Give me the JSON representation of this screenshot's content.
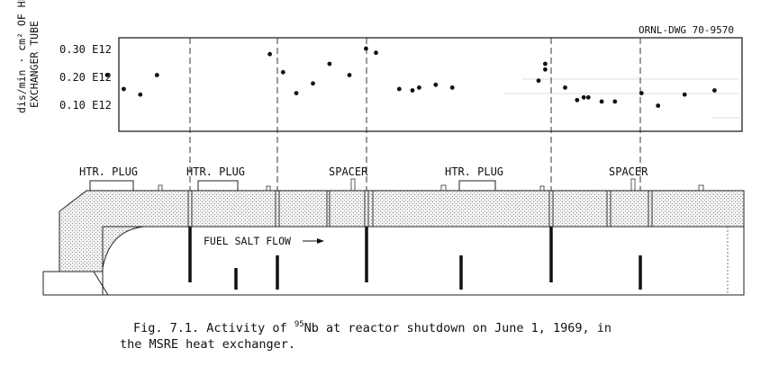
{
  "figure": {
    "drawing_number": "ORNL-DWG 70-9570",
    "y_axis_label_line1": "dis/min · cm² OF HEAT",
    "y_axis_label_line2": "EXCHANGER TUBE",
    "y_ticks": [
      "0.30 E12",
      "0.20 E12",
      "0.10 E12"
    ],
    "component_labels": [
      "HTR. PLUG",
      "HTR. PLUG",
      "SPACER",
      "HTR. PLUG",
      "SPACER"
    ],
    "flow_label": "FUEL SALT FLOW"
  },
  "chart_data": {
    "type": "scatter",
    "title": "",
    "xlabel": "",
    "ylabel": "dis/min · cm² OF HEAT EXCHANGER TUBE",
    "y_unit_multiplier": "E12",
    "ylim": [
      0.0,
      0.34
    ],
    "xlim": [
      0,
      100
    ],
    "points": [
      {
        "x": 13.5,
        "y": 0.205
      },
      {
        "x": 16.0,
        "y": 0.155
      },
      {
        "x": 18.5,
        "y": 0.135
      },
      {
        "x": 21.0,
        "y": 0.205
      },
      {
        "x": 38.0,
        "y": 0.28
      },
      {
        "x": 40.0,
        "y": 0.215
      },
      {
        "x": 42.0,
        "y": 0.14
      },
      {
        "x": 44.5,
        "y": 0.175
      },
      {
        "x": 47.0,
        "y": 0.245
      },
      {
        "x": 50.0,
        "y": 0.205
      },
      {
        "x": 52.5,
        "y": 0.3
      },
      {
        "x": 54.0,
        "y": 0.285
      },
      {
        "x": 57.5,
        "y": 0.155
      },
      {
        "x": 59.5,
        "y": 0.15
      },
      {
        "x": 60.5,
        "y": 0.16
      },
      {
        "x": 63.0,
        "y": 0.17
      },
      {
        "x": 65.5,
        "y": 0.16
      },
      {
        "x": 78.5,
        "y": 0.185
      },
      {
        "x": 79.5,
        "y": 0.245
      },
      {
        "x": 79.5,
        "y": 0.225
      },
      {
        "x": 82.5,
        "y": 0.16
      },
      {
        "x": 84.3,
        "y": 0.115
      },
      {
        "x": 85.3,
        "y": 0.125
      },
      {
        "x": 86.0,
        "y": 0.125
      },
      {
        "x": 88.0,
        "y": 0.11
      },
      {
        "x": 90.0,
        "y": 0.11
      },
      {
        "x": 94.0,
        "y": 0.14
      },
      {
        "x": 96.5,
        "y": 0.095
      },
      {
        "x": 100.5,
        "y": 0.135
      },
      {
        "x": 105.0,
        "y": 0.15
      }
    ]
  },
  "caption": {
    "fig_prefix": "Fig. 7.1.  Activity of ",
    "isotope_mass": "95",
    "isotope_symbol": "Nb",
    "line1_rest": " at reactor shutdown on June 1, 1969, in",
    "line2": "the MSRE heat exchanger."
  }
}
